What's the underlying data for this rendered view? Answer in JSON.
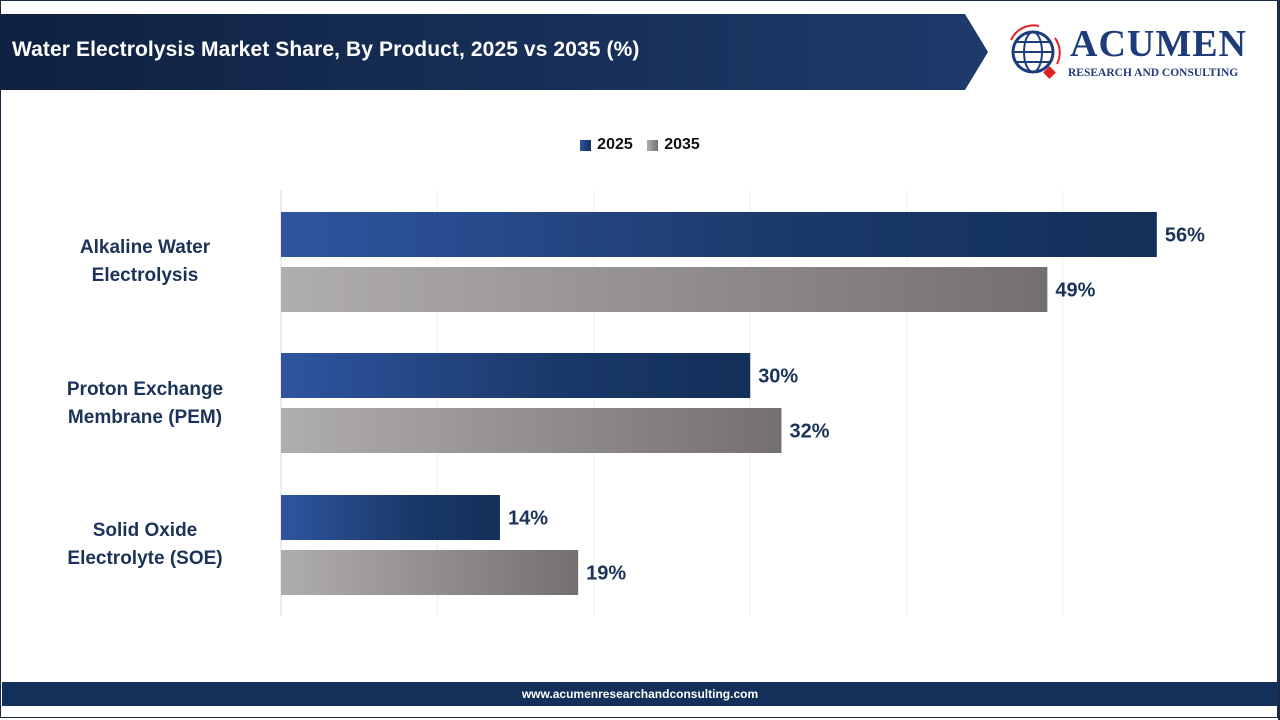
{
  "header": {
    "title": "Water Electrolysis Market Share, By Product, 2025 vs 2035 (%)"
  },
  "logo": {
    "name": "ACUMEN",
    "tagline": "RESEARCH AND CONSULTING"
  },
  "footer": {
    "url": "www.acumenresearchandconsulting.com"
  },
  "colors": {
    "series_2025": "#1d3d72",
    "series_2035": "#8a8685",
    "label": "#1b3358",
    "header": "#13284d",
    "footer": "#13305a"
  },
  "chart_data": {
    "type": "bar",
    "orientation": "horizontal",
    "title": "Water Electrolysis Market Share, By Product, 2025 vs 2035 (%)",
    "categories": [
      "Alkaline Water Electrolysis",
      "Proton Exchange Membrane (PEM)",
      "Solid Oxide Electrolyte (SOE)"
    ],
    "category_lines": [
      [
        "Alkaline Water",
        "Electrolysis"
      ],
      [
        "Proton Exchange",
        "Membrane (PEM)"
      ],
      [
        "Solid Oxide",
        "Electrolyte (SOE)"
      ]
    ],
    "series": [
      {
        "name": "2025",
        "values": [
          56,
          30,
          14
        ],
        "labels": [
          "56%",
          "30%",
          "14%"
        ]
      },
      {
        "name": "2035",
        "values": [
          49,
          32,
          19
        ],
        "labels": [
          "49%",
          "32%",
          "19%"
        ]
      }
    ],
    "xlim": [
      0,
      60
    ],
    "grid": true,
    "legend": "top-center",
    "xlabel": "",
    "ylabel": ""
  }
}
